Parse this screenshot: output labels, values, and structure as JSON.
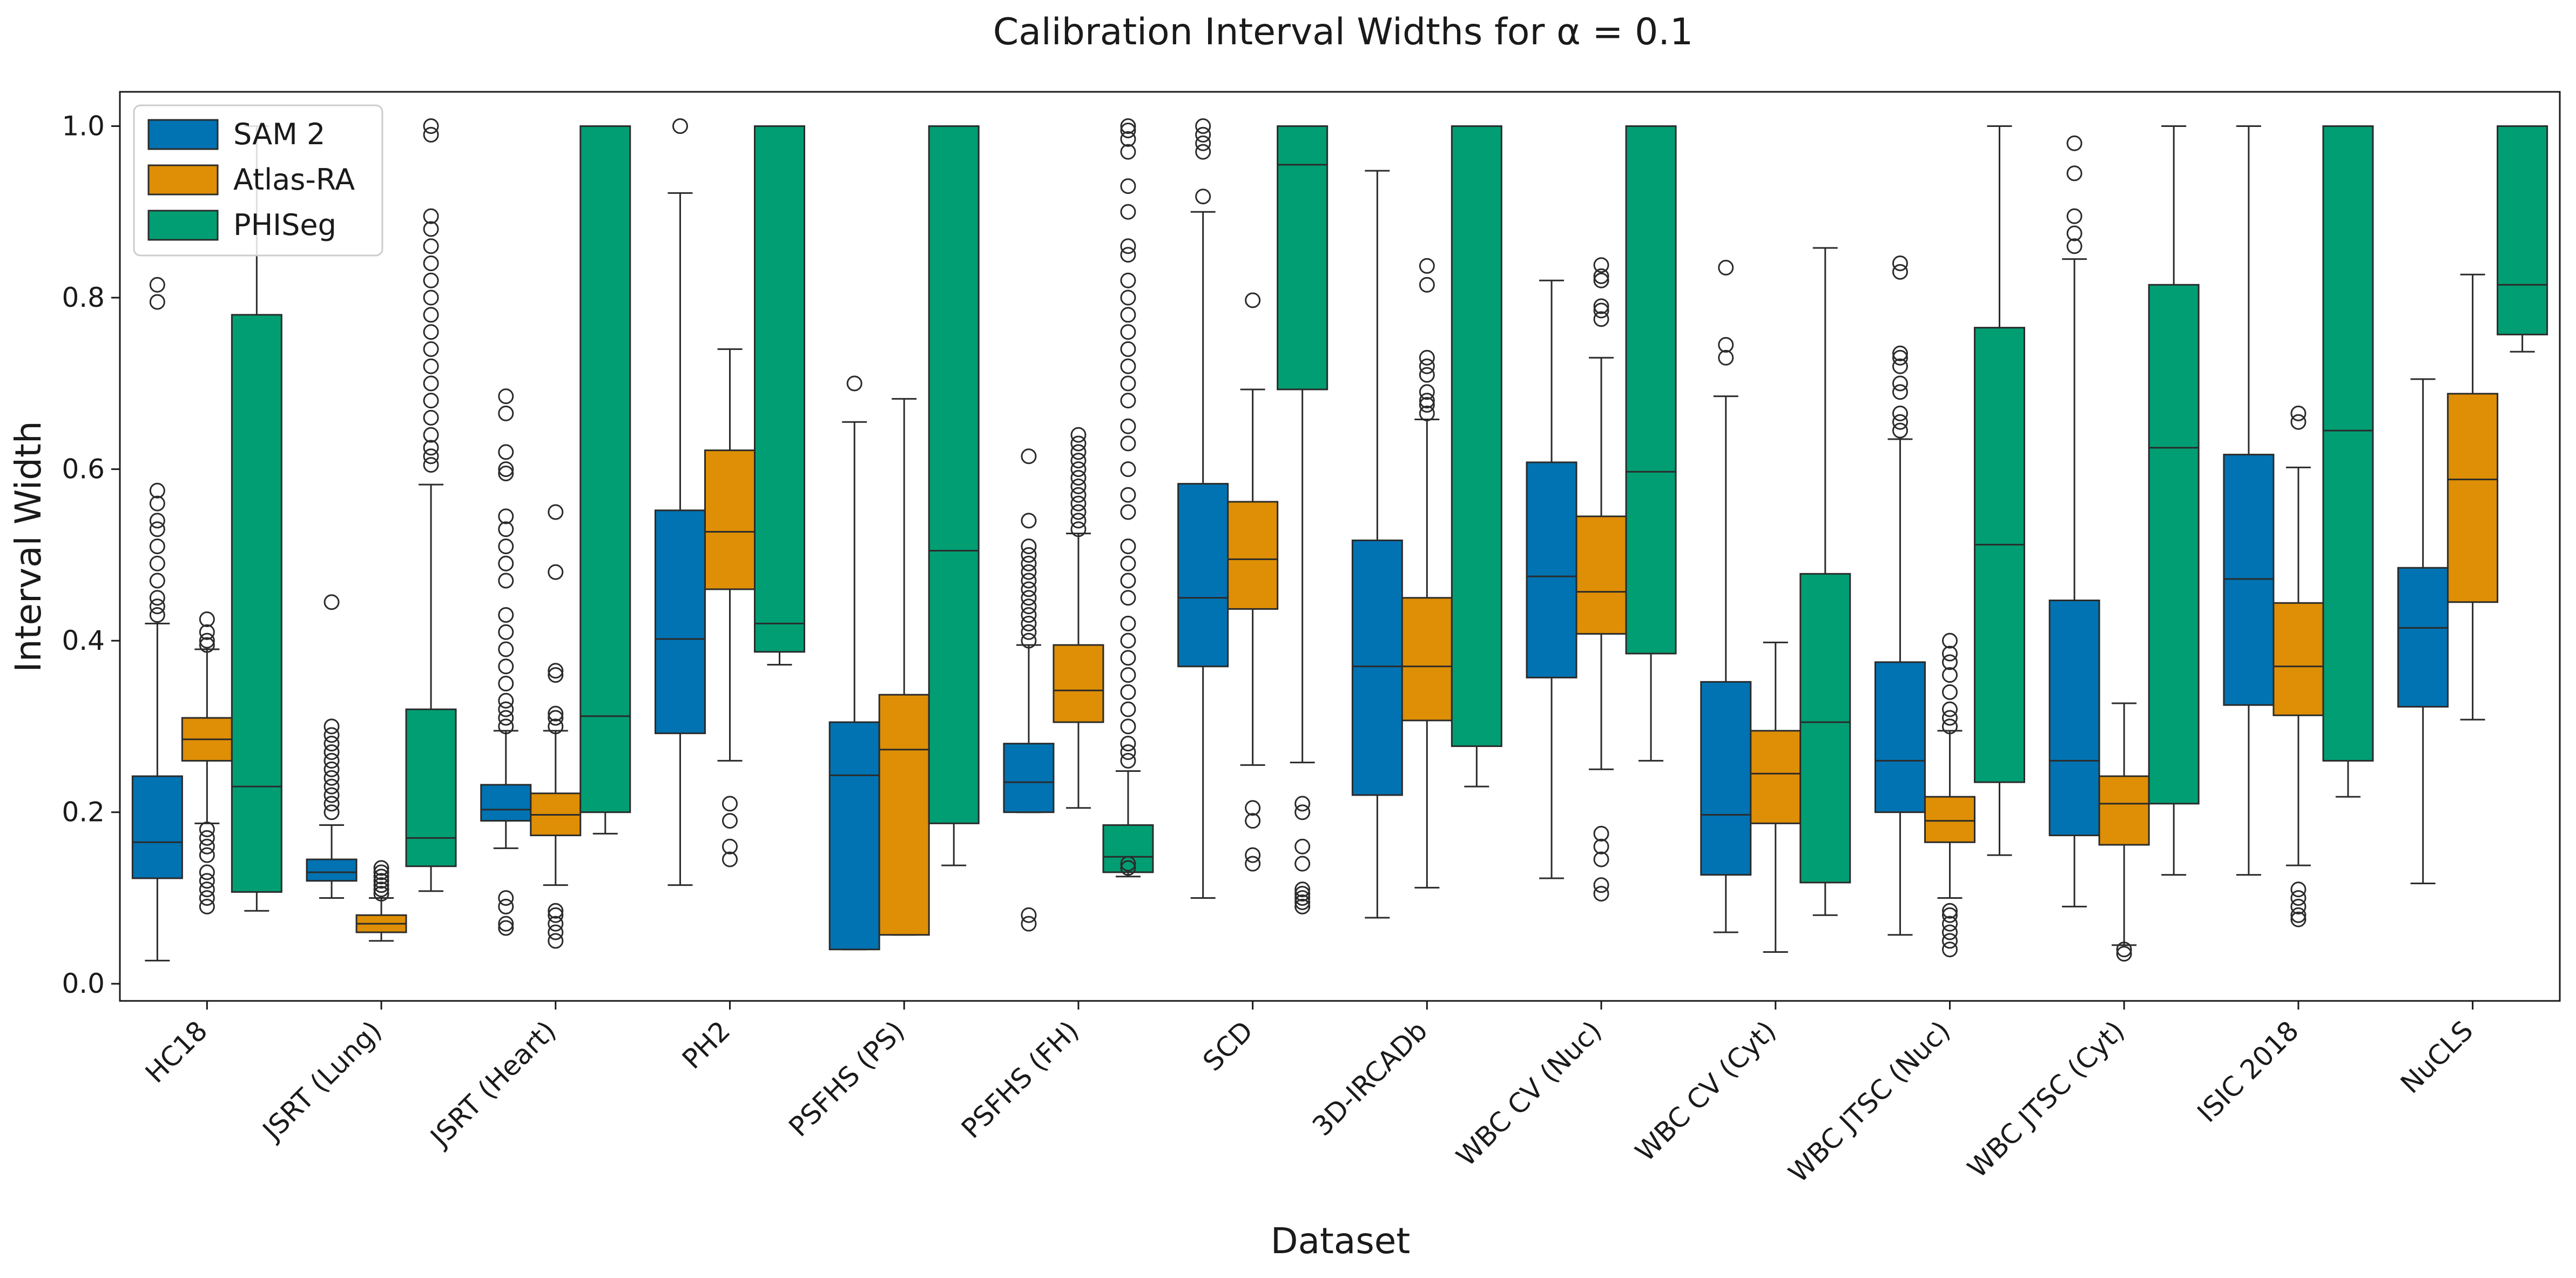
{
  "chart_data": {
    "type": "box",
    "title": "Calibration Interval Widths for α = 0.1",
    "xlabel": "Dataset",
    "ylabel": "Interval Width",
    "ylim": [
      -0.02,
      1.04
    ],
    "yticks": [
      0.0,
      0.2,
      0.4,
      0.6,
      0.8,
      1.0
    ],
    "ytick_labels": [
      "0.0",
      "0.2",
      "0.4",
      "0.6",
      "0.8",
      "1.0"
    ],
    "legend_position": "top-left",
    "grid": false,
    "categories": [
      "HC18",
      "JSRT (Lung)",
      "JSRT (Heart)",
      "PH2",
      "PSFHS (PS)",
      "PSFHS (FH)",
      "SCD",
      "3D-IRCADb",
      "WBC CV (Nuc)",
      "WBC CV (Cyt)",
      "WBC JTSC (Nuc)",
      "WBC JTSC (Cyt)",
      "ISIC 2018",
      "NuCLS"
    ],
    "series": [
      {
        "name": "SAM 2",
        "color": "#0173b2",
        "boxes": [
          {
            "whisker_low": 0.027,
            "q1": 0.123,
            "median": 0.165,
            "q3": 0.242,
            "whisker_high": 0.42,
            "outliers": [
              0.43,
              0.44,
              0.45,
              0.47,
              0.49,
              0.51,
              0.53,
              0.54,
              0.56,
              0.575,
              0.795,
              0.815
            ]
          },
          {
            "whisker_low": 0.1,
            "q1": 0.12,
            "median": 0.13,
            "q3": 0.145,
            "whisker_high": 0.185,
            "outliers": [
              0.2,
              0.21,
              0.22,
              0.23,
              0.24,
              0.25,
              0.26,
              0.27,
              0.28,
              0.29,
              0.3,
              0.445
            ]
          },
          {
            "whisker_low": 0.158,
            "q1": 0.19,
            "median": 0.203,
            "q3": 0.232,
            "whisker_high": 0.295,
            "outliers": [
              0.065,
              0.07,
              0.09,
              0.1,
              0.3,
              0.31,
              0.32,
              0.33,
              0.35,
              0.37,
              0.39,
              0.41,
              0.43,
              0.47,
              0.49,
              0.51,
              0.53,
              0.545,
              0.595,
              0.6,
              0.62,
              0.665,
              0.685
            ]
          },
          {
            "whisker_low": 0.115,
            "q1": 0.292,
            "median": 0.402,
            "q3": 0.552,
            "whisker_high": 0.922,
            "outliers": [
              1.0
            ]
          },
          {
            "whisker_low": 0.04,
            "q1": 0.04,
            "median": 0.243,
            "q3": 0.305,
            "whisker_high": 0.655,
            "outliers": [
              0.7
            ]
          },
          {
            "whisker_low": 0.2,
            "q1": 0.2,
            "median": 0.235,
            "q3": 0.28,
            "whisker_high": 0.395,
            "outliers": [
              0.07,
              0.08,
              0.4,
              0.41,
              0.42,
              0.43,
              0.44,
              0.45,
              0.46,
              0.47,
              0.48,
              0.49,
              0.5,
              0.51,
              0.54,
              0.615
            ]
          },
          {
            "whisker_low": 0.1,
            "q1": 0.37,
            "median": 0.45,
            "q3": 0.583,
            "whisker_high": 0.9,
            "outliers": [
              0.918,
              0.97,
              0.98,
              0.99,
              1.0
            ]
          },
          {
            "whisker_low": 0.077,
            "q1": 0.22,
            "median": 0.37,
            "q3": 0.517,
            "whisker_high": 0.948,
            "outliers": []
          },
          {
            "whisker_low": 0.123,
            "q1": 0.357,
            "median": 0.475,
            "q3": 0.608,
            "whisker_high": 0.82,
            "outliers": []
          },
          {
            "whisker_low": 0.06,
            "q1": 0.127,
            "median": 0.197,
            "q3": 0.352,
            "whisker_high": 0.685,
            "outliers": [
              0.73,
              0.745,
              0.835
            ]
          },
          {
            "whisker_low": 0.057,
            "q1": 0.2,
            "median": 0.26,
            "q3": 0.375,
            "whisker_high": 0.635,
            "outliers": [
              0.645,
              0.655,
              0.665,
              0.69,
              0.7,
              0.72,
              0.73,
              0.735,
              0.83,
              0.84
            ]
          },
          {
            "whisker_low": 0.09,
            "q1": 0.173,
            "median": 0.26,
            "q3": 0.447,
            "whisker_high": 0.845,
            "outliers": [
              0.86,
              0.875,
              0.895,
              0.945,
              0.98
            ]
          },
          {
            "whisker_low": 0.127,
            "q1": 0.325,
            "median": 0.472,
            "q3": 0.617,
            "whisker_high": 1.0,
            "outliers": []
          },
          {
            "whisker_low": 0.117,
            "q1": 0.323,
            "median": 0.415,
            "q3": 0.485,
            "whisker_high": 0.705,
            "outliers": []
          }
        ]
      },
      {
        "name": "Atlas-RA",
        "color": "#de8f05",
        "boxes": [
          {
            "whisker_low": 0.187,
            "q1": 0.26,
            "median": 0.285,
            "q3": 0.31,
            "whisker_high": 0.39,
            "outliers": [
              0.09,
              0.1,
              0.11,
              0.12,
              0.13,
              0.15,
              0.16,
              0.17,
              0.18,
              0.395,
              0.4,
              0.41,
              0.425
            ]
          },
          {
            "whisker_low": 0.05,
            "q1": 0.06,
            "median": 0.07,
            "q3": 0.08,
            "whisker_high": 0.1,
            "outliers": [
              0.105,
              0.11,
              0.115,
              0.12,
              0.125,
              0.13,
              0.135
            ]
          },
          {
            "whisker_low": 0.115,
            "q1": 0.173,
            "median": 0.197,
            "q3": 0.222,
            "whisker_high": 0.295,
            "outliers": [
              0.05,
              0.06,
              0.07,
              0.08,
              0.085,
              0.3,
              0.31,
              0.315,
              0.36,
              0.365,
              0.48,
              0.55
            ]
          },
          {
            "whisker_low": 0.26,
            "q1": 0.46,
            "median": 0.527,
            "q3": 0.622,
            "whisker_high": 0.74,
            "outliers": [
              0.145,
              0.16,
              0.19,
              0.21
            ]
          },
          {
            "whisker_low": 0.057,
            "q1": 0.057,
            "median": 0.273,
            "q3": 0.337,
            "whisker_high": 0.682,
            "outliers": []
          },
          {
            "whisker_low": 0.205,
            "q1": 0.305,
            "median": 0.342,
            "q3": 0.395,
            "whisker_high": 0.525,
            "outliers": [
              0.53,
              0.54,
              0.55,
              0.56,
              0.57,
              0.58,
              0.59,
              0.6,
              0.61,
              0.62,
              0.63,
              0.64
            ]
          },
          {
            "whisker_low": 0.255,
            "q1": 0.437,
            "median": 0.495,
            "q3": 0.562,
            "whisker_high": 0.693,
            "outliers": [
              0.14,
              0.15,
              0.19,
              0.205,
              0.797
            ]
          },
          {
            "whisker_low": 0.112,
            "q1": 0.307,
            "median": 0.37,
            "q3": 0.45,
            "whisker_high": 0.658,
            "outliers": [
              0.665,
              0.675,
              0.68,
              0.69,
              0.71,
              0.72,
              0.73,
              0.815,
              0.837
            ]
          },
          {
            "whisker_low": 0.25,
            "q1": 0.408,
            "median": 0.457,
            "q3": 0.545,
            "whisker_high": 0.73,
            "outliers": [
              0.105,
              0.115,
              0.145,
              0.16,
              0.175,
              0.775,
              0.785,
              0.79,
              0.82,
              0.825,
              0.838
            ]
          },
          {
            "whisker_low": 0.037,
            "q1": 0.187,
            "median": 0.245,
            "q3": 0.295,
            "whisker_high": 0.398,
            "outliers": []
          },
          {
            "whisker_low": 0.1,
            "q1": 0.165,
            "median": 0.19,
            "q3": 0.218,
            "whisker_high": 0.295,
            "outliers": [
              0.04,
              0.05,
              0.06,
              0.07,
              0.08,
              0.085,
              0.3,
              0.31,
              0.32,
              0.34,
              0.36,
              0.375,
              0.385,
              0.4
            ]
          },
          {
            "whisker_low": 0.045,
            "q1": 0.162,
            "median": 0.21,
            "q3": 0.242,
            "whisker_high": 0.327,
            "outliers": [
              0.035,
              0.04
            ]
          },
          {
            "whisker_low": 0.138,
            "q1": 0.313,
            "median": 0.37,
            "q3": 0.444,
            "whisker_high": 0.602,
            "outliers": [
              0.075,
              0.08,
              0.09,
              0.1,
              0.11,
              0.655,
              0.665
            ]
          },
          {
            "whisker_low": 0.308,
            "q1": 0.445,
            "median": 0.588,
            "q3": 0.688,
            "whisker_high": 0.827,
            "outliers": []
          }
        ]
      },
      {
        "name": "PHISeg",
        "color": "#029e73",
        "boxes": [
          {
            "whisker_low": 0.085,
            "q1": 0.107,
            "median": 0.23,
            "q3": 0.78,
            "whisker_high": 1.0,
            "outliers": []
          },
          {
            "whisker_low": 0.108,
            "q1": 0.137,
            "median": 0.17,
            "q3": 0.32,
            "whisker_high": 0.582,
            "outliers": [
              0.605,
              0.615,
              0.625,
              0.64,
              0.66,
              0.68,
              0.7,
              0.72,
              0.74,
              0.76,
              0.78,
              0.8,
              0.82,
              0.84,
              0.86,
              0.88,
              0.895,
              0.99,
              1.0
            ]
          },
          {
            "whisker_low": 0.175,
            "q1": 0.2,
            "median": 0.312,
            "q3": 1.0,
            "whisker_high": 1.0,
            "outliers": []
          },
          {
            "whisker_low": 0.372,
            "q1": 0.387,
            "median": 0.42,
            "q3": 1.0,
            "whisker_high": 1.0,
            "outliers": []
          },
          {
            "whisker_low": 0.138,
            "q1": 0.187,
            "median": 0.505,
            "q3": 1.0,
            "whisker_high": 1.0,
            "outliers": []
          },
          {
            "whisker_low": 0.125,
            "q1": 0.13,
            "median": 0.148,
            "q3": 0.185,
            "whisker_high": 0.248,
            "outliers": [
              0.135,
              0.14,
              0.26,
              0.27,
              0.28,
              0.3,
              0.32,
              0.34,
              0.36,
              0.38,
              0.4,
              0.42,
              0.45,
              0.47,
              0.49,
              0.51,
              0.55,
              0.57,
              0.6,
              0.63,
              0.65,
              0.68,
              0.7,
              0.72,
              0.74,
              0.76,
              0.78,
              0.8,
              0.82,
              0.85,
              0.86,
              0.9,
              0.93,
              0.97,
              0.985,
              0.995,
              1.0
            ]
          },
          {
            "whisker_low": 0.258,
            "q1": 0.693,
            "median": 0.955,
            "q3": 1.0,
            "whisker_high": 1.0,
            "outliers": [
              0.09,
              0.095,
              0.1,
              0.105,
              0.11,
              0.14,
              0.16,
              0.2,
              0.21
            ]
          },
          {
            "whisker_low": 0.23,
            "q1": 0.277,
            "median": 1.0,
            "q3": 1.0,
            "whisker_high": 1.0,
            "outliers": []
          },
          {
            "whisker_low": 0.26,
            "q1": 0.385,
            "median": 0.597,
            "q3": 1.0,
            "whisker_high": 1.0,
            "outliers": []
          },
          {
            "whisker_low": 0.08,
            "q1": 0.118,
            "median": 0.305,
            "q3": 0.478,
            "whisker_high": 0.858,
            "outliers": []
          },
          {
            "whisker_low": 0.15,
            "q1": 0.235,
            "median": 0.512,
            "q3": 0.765,
            "whisker_high": 1.0,
            "outliers": []
          },
          {
            "whisker_low": 0.127,
            "q1": 0.21,
            "median": 0.625,
            "q3": 0.815,
            "whisker_high": 1.0,
            "outliers": []
          },
          {
            "whisker_low": 0.218,
            "q1": 0.26,
            "median": 0.645,
            "q3": 1.0,
            "whisker_high": 1.0,
            "outliers": []
          },
          {
            "whisker_low": 0.737,
            "q1": 0.757,
            "median": 0.815,
            "q3": 1.0,
            "whisker_high": 1.0,
            "outliers": []
          }
        ]
      }
    ]
  }
}
